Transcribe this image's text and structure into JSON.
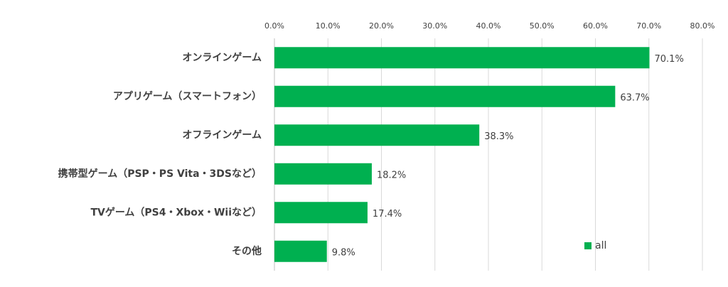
{
  "chart_data": {
    "type": "bar",
    "orientation": "horizontal",
    "categories": [
      "オンラインゲーム",
      "アプリゲーム（スマートフォン）",
      "オフラインゲーム",
      "携帯型ゲーム（PSP・PS Vita・3DSなど）",
      "TVゲーム（PS4・Xbox・Wiiなど）",
      "その他"
    ],
    "series": [
      {
        "name": "all",
        "color": "#00b050",
        "values": [
          70.1,
          63.7,
          38.3,
          18.2,
          17.4,
          9.8
        ],
        "value_labels": [
          "70.1%",
          "63.7%",
          "38.3%",
          "18.2%",
          "17.4%",
          "9.8%"
        ]
      }
    ],
    "xlim": [
      0,
      80
    ],
    "xticks": [
      {
        "value": 0,
        "label": "0.0%"
      },
      {
        "value": 10,
        "label": "10.0%"
      },
      {
        "value": 20,
        "label": "20.0%"
      },
      {
        "value": 30,
        "label": "30.0%"
      },
      {
        "value": 40,
        "label": "40.0%"
      },
      {
        "value": 50,
        "label": "50.0%"
      },
      {
        "value": 60,
        "label": "60.0%"
      },
      {
        "value": 70,
        "label": "70.0%"
      },
      {
        "value": 80,
        "label": "80.0%"
      }
    ],
    "grid": true,
    "legend_position": "bottom-right"
  }
}
